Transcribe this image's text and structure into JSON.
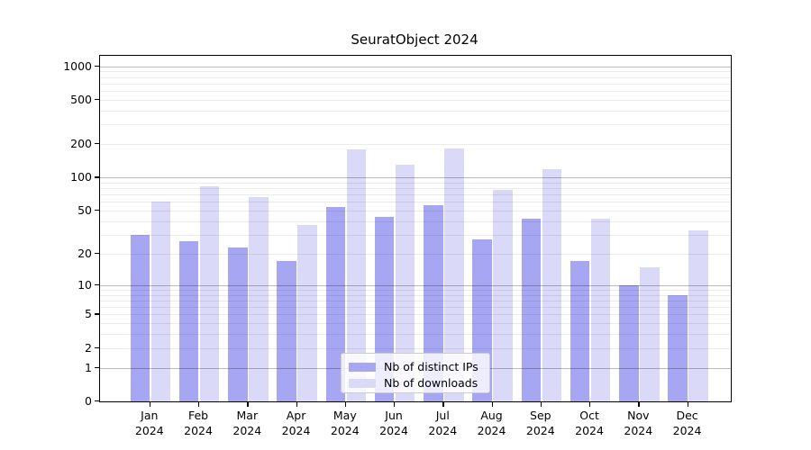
{
  "chart_data": {
    "type": "bar",
    "title": "SeuratObject 2024",
    "categories": [
      "Jan 2024",
      "Feb 2024",
      "Mar 2024",
      "Apr 2024",
      "May 2024",
      "Jun 2024",
      "Jul 2024",
      "Aug 2024",
      "Sep 2024",
      "Oct 2024",
      "Nov 2024",
      "Dec 2024"
    ],
    "series": [
      {
        "name": "Nb of distinct IPs",
        "color": "#a6a6f2",
        "values": [
          30,
          26,
          23,
          17,
          54,
          44,
          56,
          27,
          42,
          17,
          10,
          8
        ]
      },
      {
        "name": "Nb of downloads",
        "color": "#dadaf8",
        "values": [
          60,
          83,
          66,
          37,
          178,
          130,
          182,
          77,
          120,
          42,
          15,
          33
        ]
      }
    ],
    "xlabel": "",
    "ylabel": "",
    "yscale": "log1p",
    "ylim": [
      0,
      1240
    ],
    "yticks": [
      0,
      1,
      2,
      5,
      10,
      20,
      50,
      100,
      200,
      500,
      1000
    ],
    "ygrid_major": [
      1,
      10,
      100,
      1000
    ],
    "ygrid_minor": [
      2,
      3,
      4,
      5,
      6,
      7,
      8,
      9,
      20,
      30,
      40,
      50,
      60,
      70,
      80,
      90,
      200,
      300,
      400,
      500,
      600,
      700,
      800,
      900
    ],
    "grid": true,
    "legend_position": "lower center"
  },
  "colors": {
    "background": "#ffffff",
    "spine": "#000000",
    "bar_distinct_ips": "#a6a6f2",
    "bar_downloads": "#dadaf8"
  }
}
